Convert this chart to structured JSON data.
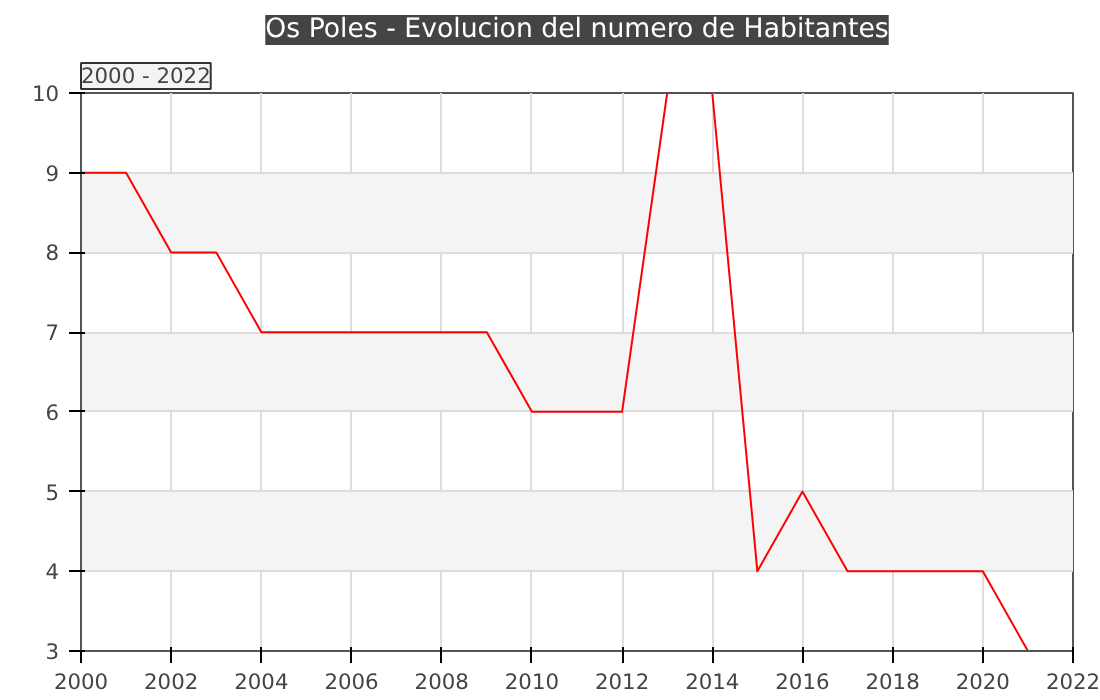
{
  "chart_data": {
    "type": "line",
    "title": "Os Poles - Evolucion del numero de Habitantes",
    "annotations": [
      "2000 - 2022"
    ],
    "x": [
      2000,
      2001,
      2002,
      2003,
      2004,
      2005,
      2006,
      2007,
      2008,
      2009,
      2010,
      2011,
      2012,
      2013,
      2014,
      2015,
      2016,
      2017,
      2018,
      2019,
      2020,
      2021
    ],
    "series": [
      {
        "color": "#ff0000",
        "values": [
          9,
          9,
          8,
          8,
          7,
          7,
          7,
          7,
          7,
          7,
          6,
          6,
          6,
          10,
          10,
          4,
          5,
          4,
          4,
          4,
          4,
          3
        ]
      }
    ],
    "xlim": [
      2000,
      2022
    ],
    "xticks": [
      2000,
      2002,
      2004,
      2006,
      2008,
      2010,
      2012,
      2014,
      2016,
      2018,
      2020,
      2022
    ],
    "ylim": [
      3,
      10
    ],
    "yticks": [
      3,
      4,
      5,
      6,
      7,
      8,
      9,
      10
    ],
    "grid": true,
    "marker": "none",
    "line_style": "solid"
  }
}
